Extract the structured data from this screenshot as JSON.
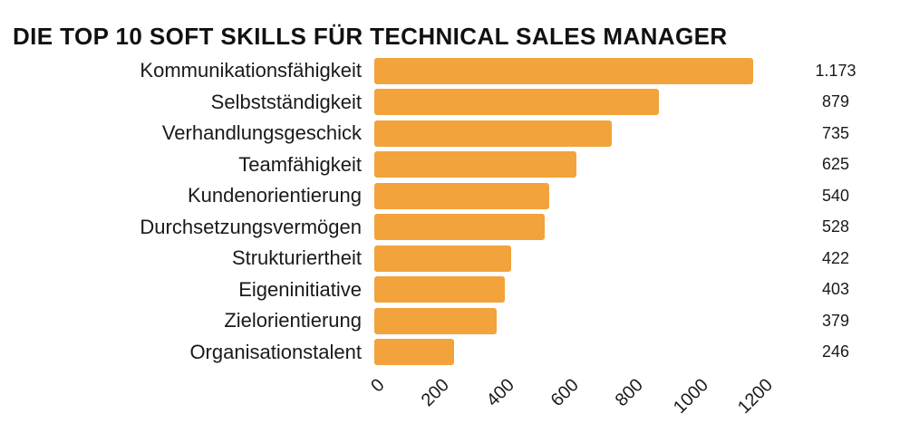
{
  "title": "DIE TOP 10 SOFT SKILLS FÜR TECHNICAL SALES MANAGER",
  "chart_data": {
    "type": "bar",
    "orientation": "horizontal",
    "title": "DIE TOP 10 SOFT SKILLS FÜR TECHNICAL SALES MANAGER",
    "categories": [
      "Kommunikationsfähigkeit",
      "Selbstständigkeit",
      "Verhandlungsgeschick",
      "Teamfähigkeit",
      "Kundenorientierung",
      "Durchsetzungsvermögen",
      "Strukturiertheit",
      "Eigeninitiative",
      "Zielorientierung",
      "Organisationstalent"
    ],
    "values": [
      1173,
      879,
      735,
      625,
      540,
      528,
      422,
      403,
      379,
      246
    ],
    "value_labels": [
      "1.173",
      "879",
      "735",
      "625",
      "540",
      "528",
      "422",
      "403",
      "379",
      "246"
    ],
    "xlabel": "",
    "ylabel": "",
    "xlim": [
      0,
      1200
    ],
    "xticks": [
      0,
      200,
      400,
      600,
      800,
      1000,
      1200
    ],
    "xtick_labels": [
      "0",
      "200",
      "400",
      "600",
      "800",
      "1000",
      "1200"
    ],
    "xtick_rotation_deg": 45,
    "grid": false,
    "legend_position": "none",
    "bar_color": "#F2A33C",
    "background_color": "#FFFFFF",
    "text_color": "#1A1A1A"
  }
}
